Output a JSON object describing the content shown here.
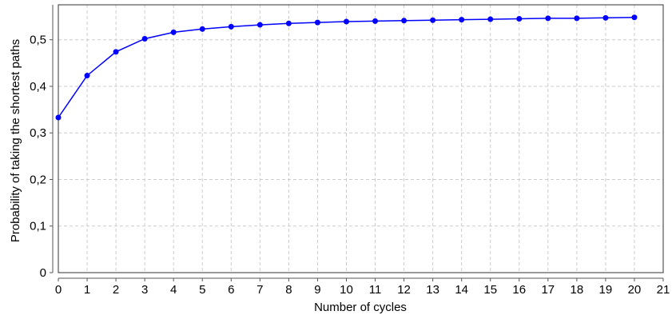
{
  "chart_data": {
    "type": "line",
    "title": "",
    "xlabel": "Number of cycles",
    "ylabel": "Probability of taking the shortest paths",
    "xlim": [
      0,
      21
    ],
    "ylim": [
      0,
      0.575
    ],
    "grid": true,
    "x_ticks": [
      0,
      1,
      2,
      3,
      4,
      5,
      6,
      7,
      8,
      9,
      10,
      11,
      12,
      13,
      14,
      15,
      16,
      17,
      18,
      19,
      20,
      21
    ],
    "x_tick_labels": [
      "0",
      "1",
      "2",
      "3",
      "4",
      "5",
      "6",
      "7",
      "8",
      "9",
      "10",
      "11",
      "12",
      "13",
      "14",
      "15",
      "16",
      "17",
      "18",
      "19",
      "20",
      "21"
    ],
    "y_ticks": [
      0,
      0.1,
      0.2,
      0.3,
      0.4,
      0.5
    ],
    "y_tick_labels": [
      "0",
      "0,1",
      "0,2",
      "0,3",
      "0,4",
      "0,5"
    ],
    "series": [
      {
        "color": "#0000ff",
        "marker": "circle",
        "x": [
          0,
          1,
          2,
          3,
          4,
          5,
          6,
          7,
          8,
          9,
          10,
          11,
          12,
          13,
          14,
          15,
          16,
          17,
          18,
          19,
          20
        ],
        "y": [
          0.333,
          0.423,
          0.474,
          0.502,
          0.516,
          0.523,
          0.528,
          0.532,
          0.535,
          0.537,
          0.539,
          0.54,
          0.541,
          0.542,
          0.543,
          0.544,
          0.545,
          0.546,
          0.546,
          0.547,
          0.548
        ]
      }
    ]
  }
}
